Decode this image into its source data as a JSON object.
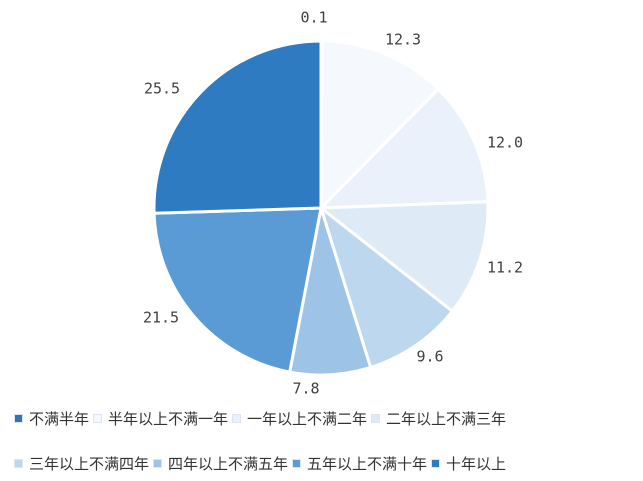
{
  "chart_data": {
    "type": "pie",
    "categories": [
      "不满半年",
      "半年以上不满一年",
      "一年以上不满二年",
      "二年以上不满三年",
      "三年以上不满四年",
      "四年以上不满五年",
      "五年以上不满十年",
      "十年以上"
    ],
    "values": [
      0.1,
      12.3,
      12.0,
      11.2,
      9.6,
      7.8,
      21.5,
      25.5
    ],
    "data_labels": [
      "0.1",
      "12.3",
      "12.0",
      "11.2",
      "9.6",
      "7.8",
      "21.5",
      "25.5"
    ],
    "colors": [
      "#2e75b6",
      "#f5f9fd",
      "#eaf1fa",
      "#deebf7",
      "#bdd7ee",
      "#9dc3e6",
      "#5b9bd5",
      "#2e7bc1"
    ],
    "legend_position": "bottom",
    "title": ""
  }
}
